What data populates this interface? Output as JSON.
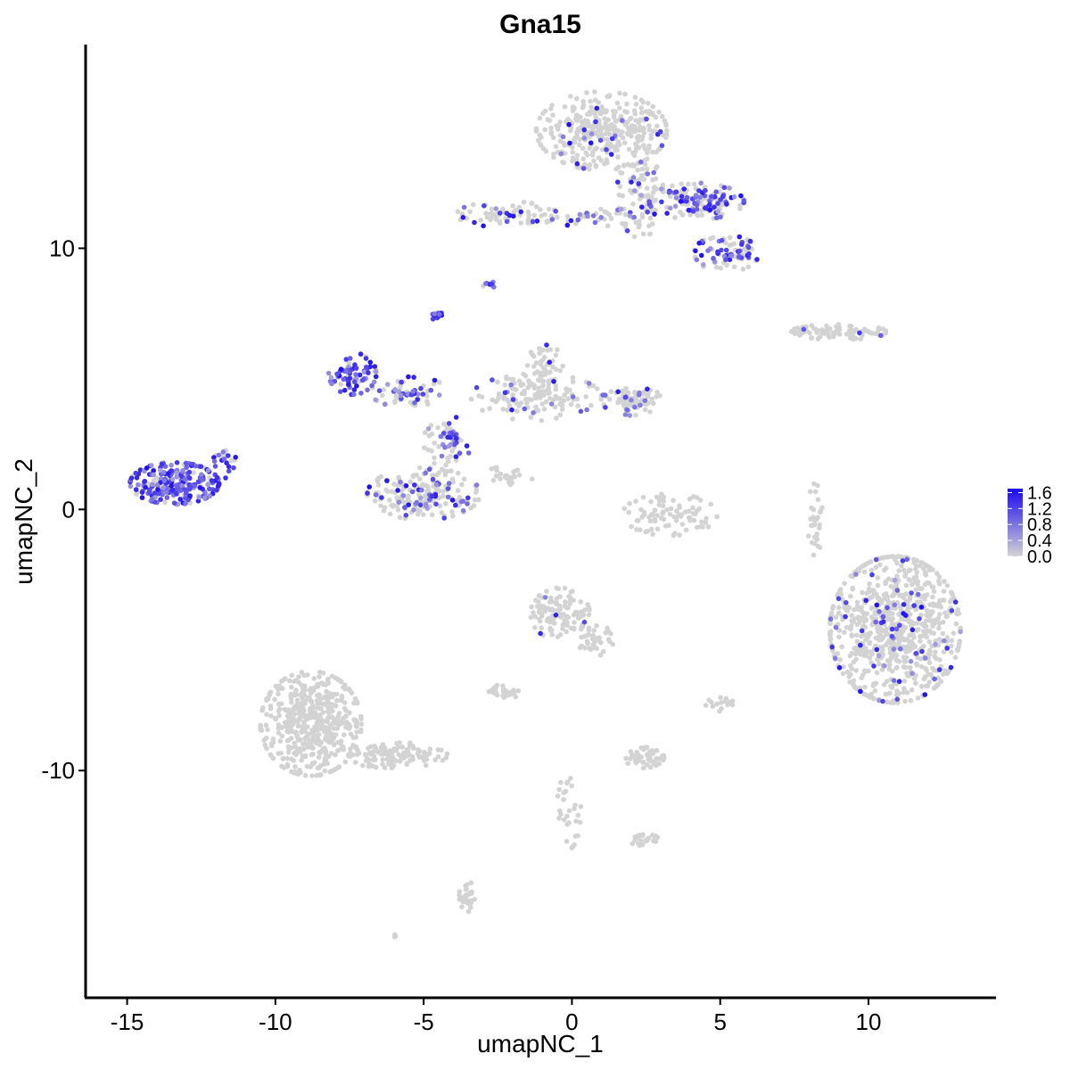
{
  "chart_data": {
    "type": "scatter",
    "title": "Gna15",
    "xlabel": "umapNC_1",
    "ylabel": "umapNC_2",
    "xlim": [
      -16.4,
      14.3
    ],
    "ylim": [
      -18.7,
      17.8
    ],
    "xticks": [
      -15,
      -10,
      -5,
      0,
      5,
      10
    ],
    "xtick_labels": [
      "-15",
      "-10",
      "-5",
      "0",
      "5",
      "10"
    ],
    "yticks": [
      -10,
      0,
      10
    ],
    "ytick_labels": [
      "-10",
      "0",
      "10"
    ],
    "grid": false,
    "color_low": "#d3d3d3",
    "color_high": "#1a09f0",
    "value_range": [
      0,
      1.7
    ],
    "legend": {
      "position": "right",
      "breaks": [
        0.0,
        0.4,
        0.8,
        1.2,
        1.6
      ],
      "labels": [
        "0.0",
        "0.4",
        "0.8",
        "1.2",
        "1.6"
      ]
    },
    "clusters": [
      {
        "name": "top-right-blob",
        "cx": 1.0,
        "cy": 14.5,
        "rx": 2.2,
        "ry": 1.5,
        "n": 350,
        "expr_frac": 0.05
      },
      {
        "name": "top-right-stalk",
        "cx": 2.3,
        "cy": 12.0,
        "rx": 0.8,
        "ry": 1.6,
        "n": 90,
        "expr_frac": 0.15
      },
      {
        "name": "top-right-arm",
        "cx": 4.2,
        "cy": 11.8,
        "rx": 1.6,
        "ry": 0.7,
        "n": 150,
        "expr_frac": 0.45
      },
      {
        "name": "top-right-arm2",
        "cx": 5.2,
        "cy": 9.8,
        "rx": 1.1,
        "ry": 0.7,
        "n": 80,
        "expr_frac": 0.5
      },
      {
        "name": "top-arm-left",
        "cx": -2.2,
        "cy": 11.3,
        "rx": 1.7,
        "ry": 0.5,
        "n": 70,
        "expr_frac": 0.2
      },
      {
        "name": "top-arm-mid",
        "cx": 0.7,
        "cy": 11.2,
        "rx": 1.4,
        "ry": 0.4,
        "n": 35,
        "expr_frac": 0.3
      },
      {
        "name": "small-dot-a",
        "cx": -2.8,
        "cy": 8.6,
        "rx": 0.2,
        "ry": 0.15,
        "n": 10,
        "expr_frac": 0.9
      },
      {
        "name": "small-dot-b",
        "cx": -4.5,
        "cy": 7.4,
        "rx": 0.2,
        "ry": 0.3,
        "n": 14,
        "expr_frac": 0.95
      },
      {
        "name": "right-thin-arm",
        "cx": 9.0,
        "cy": 6.8,
        "rx": 1.6,
        "ry": 0.3,
        "n": 80,
        "expr_frac": 0.02
      },
      {
        "name": "mid-left-branch",
        "cx": -7.4,
        "cy": 5.2,
        "rx": 0.8,
        "ry": 0.8,
        "n": 80,
        "expr_frac": 0.8
      },
      {
        "name": "mid-branch-conn",
        "cx": -5.5,
        "cy": 4.5,
        "rx": 1.3,
        "ry": 0.6,
        "n": 60,
        "expr_frac": 0.45
      },
      {
        "name": "mid-center",
        "cx": -1.2,
        "cy": 4.3,
        "rx": 2.2,
        "ry": 0.9,
        "n": 150,
        "expr_frac": 0.08
      },
      {
        "name": "mid-center-top",
        "cx": -0.9,
        "cy": 5.6,
        "rx": 0.6,
        "ry": 0.7,
        "n": 40,
        "expr_frac": 0.05
      },
      {
        "name": "mid-right-blob",
        "cx": 2.0,
        "cy": 4.2,
        "rx": 1.0,
        "ry": 0.6,
        "n": 80,
        "expr_frac": 0.15
      },
      {
        "name": "mid-stem",
        "cx": -4.2,
        "cy": 2.6,
        "rx": 0.8,
        "ry": 1.0,
        "n": 60,
        "expr_frac": 0.35
      },
      {
        "name": "mid-lower-ring",
        "cx": -5.0,
        "cy": 0.6,
        "rx": 1.9,
        "ry": 1.0,
        "n": 200,
        "expr_frac": 0.25
      },
      {
        "name": "left-cluster",
        "cx": -13.4,
        "cy": 1.0,
        "rx": 1.5,
        "ry": 0.8,
        "n": 250,
        "expr_frac": 0.85
      },
      {
        "name": "left-cluster-tail",
        "cx": -11.6,
        "cy": 1.8,
        "rx": 0.5,
        "ry": 0.6,
        "n": 20,
        "expr_frac": 0.6
      },
      {
        "name": "mid-diagonal-streak",
        "cx": -2.1,
        "cy": 1.3,
        "rx": 0.9,
        "ry": 0.35,
        "n": 25,
        "expr_frac": 0.0
      },
      {
        "name": "center-arc",
        "cx": 3.3,
        "cy": -0.2,
        "rx": 1.6,
        "ry": 0.8,
        "n": 90,
        "expr_frac": 0.0
      },
      {
        "name": "right-thin-vertical",
        "cx": 8.2,
        "cy": -0.4,
        "rx": 0.25,
        "ry": 1.4,
        "n": 30,
        "expr_frac": 0.0
      },
      {
        "name": "right-big-blob",
        "cx": 10.9,
        "cy": -4.6,
        "rx": 2.2,
        "ry": 2.8,
        "n": 800,
        "expr_frac": 0.08
      },
      {
        "name": "center-blob",
        "cx": -0.4,
        "cy": -4.0,
        "rx": 1.0,
        "ry": 1.0,
        "n": 120,
        "expr_frac": 0.05
      },
      {
        "name": "center-blob-tail",
        "cx": 0.8,
        "cy": -5.0,
        "rx": 0.6,
        "ry": 0.6,
        "n": 35,
        "expr_frac": 0.0
      },
      {
        "name": "center-small",
        "cx": -2.3,
        "cy": -7.0,
        "rx": 0.5,
        "ry": 0.3,
        "n": 35,
        "expr_frac": 0.0
      },
      {
        "name": "bottom-left-blob",
        "cx": -8.8,
        "cy": -8.2,
        "rx": 1.7,
        "ry": 2.0,
        "n": 500,
        "expr_frac": 0.0
      },
      {
        "name": "bottom-left-tail",
        "cx": -6.0,
        "cy": -9.4,
        "rx": 1.8,
        "ry": 0.5,
        "n": 120,
        "expr_frac": 0.0
      },
      {
        "name": "bottom-mid-blob",
        "cx": 2.4,
        "cy": -9.5,
        "rx": 0.7,
        "ry": 0.4,
        "n": 50,
        "expr_frac": 0.0
      },
      {
        "name": "bottom-mid-small",
        "cx": 2.5,
        "cy": -12.7,
        "rx": 0.5,
        "ry": 0.25,
        "n": 25,
        "expr_frac": 0.0
      },
      {
        "name": "bottom-streak",
        "cx": -0.1,
        "cy": -11.5,
        "rx": 0.4,
        "ry": 1.5,
        "n": 30,
        "expr_frac": 0.0
      },
      {
        "name": "bottom-low-cluster",
        "cx": -3.5,
        "cy": -14.8,
        "rx": 0.3,
        "ry": 0.6,
        "n": 30,
        "expr_frac": 0.0
      },
      {
        "name": "right-small-bits",
        "cx": 5.0,
        "cy": -7.5,
        "rx": 0.5,
        "ry": 0.3,
        "n": 15,
        "expr_frac": 0.0
      },
      {
        "name": "lone-bottom",
        "cx": -6.0,
        "cy": -16.3,
        "rx": 0.1,
        "ry": 0.1,
        "n": 3,
        "expr_frac": 0.0
      }
    ]
  }
}
